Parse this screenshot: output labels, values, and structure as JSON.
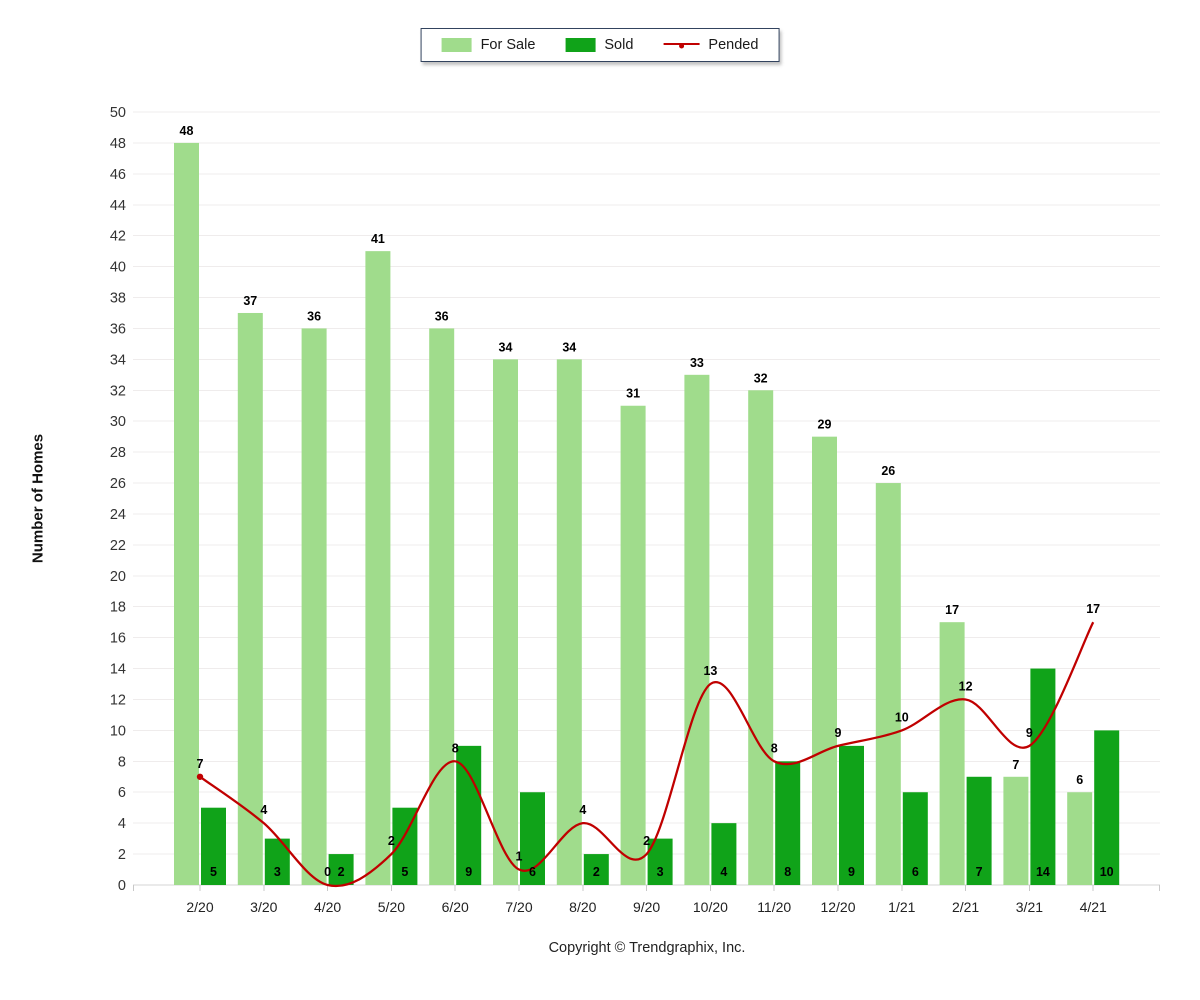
{
  "chart_data": {
    "type": "combo",
    "categories": [
      "2/20",
      "3/20",
      "4/20",
      "5/20",
      "6/20",
      "7/20",
      "8/20",
      "9/20",
      "10/20",
      "11/20",
      "12/20",
      "1/21",
      "2/21",
      "3/21",
      "4/21"
    ],
    "series": [
      {
        "name": "For Sale",
        "type": "bar",
        "color": "#A0DC8C",
        "values": [
          48,
          37,
          36,
          41,
          36,
          34,
          34,
          31,
          33,
          32,
          29,
          26,
          17,
          7,
          6
        ]
      },
      {
        "name": "Sold",
        "type": "bar",
        "color": "#10A319",
        "values": [
          5,
          3,
          2,
          5,
          9,
          6,
          2,
          3,
          4,
          8,
          9,
          6,
          7,
          14,
          10
        ]
      },
      {
        "name": "Pended",
        "type": "line",
        "color": "#C00000",
        "values": [
          7,
          4,
          0,
          2,
          8,
          1,
          4,
          2,
          13,
          8,
          9,
          10,
          12,
          9,
          17
        ]
      }
    ],
    "ylabel": "Number of Homes",
    "xlabel": "",
    "ylim": [
      0,
      50
    ],
    "ytick_step": 2,
    "grid": true,
    "legend_position": "top-center",
    "value_labels": true
  },
  "legend": {
    "items": [
      {
        "label": "For Sale",
        "swatch": "bar",
        "color": "#A0DC8C"
      },
      {
        "label": "Sold",
        "swatch": "bar",
        "color": "#10A319"
      },
      {
        "label": "Pended",
        "swatch": "line",
        "color": "#C00000"
      }
    ]
  },
  "footer": {
    "copyright": "Copyright © Trendgraphix, Inc."
  },
  "colors": {
    "grid": "#efecec",
    "baseline": "#d4d4d4",
    "tick_mark": "#c8c8c8",
    "y_tick_text": "#333333",
    "x_tick_text": "#222222",
    "value_label": "#000000"
  }
}
